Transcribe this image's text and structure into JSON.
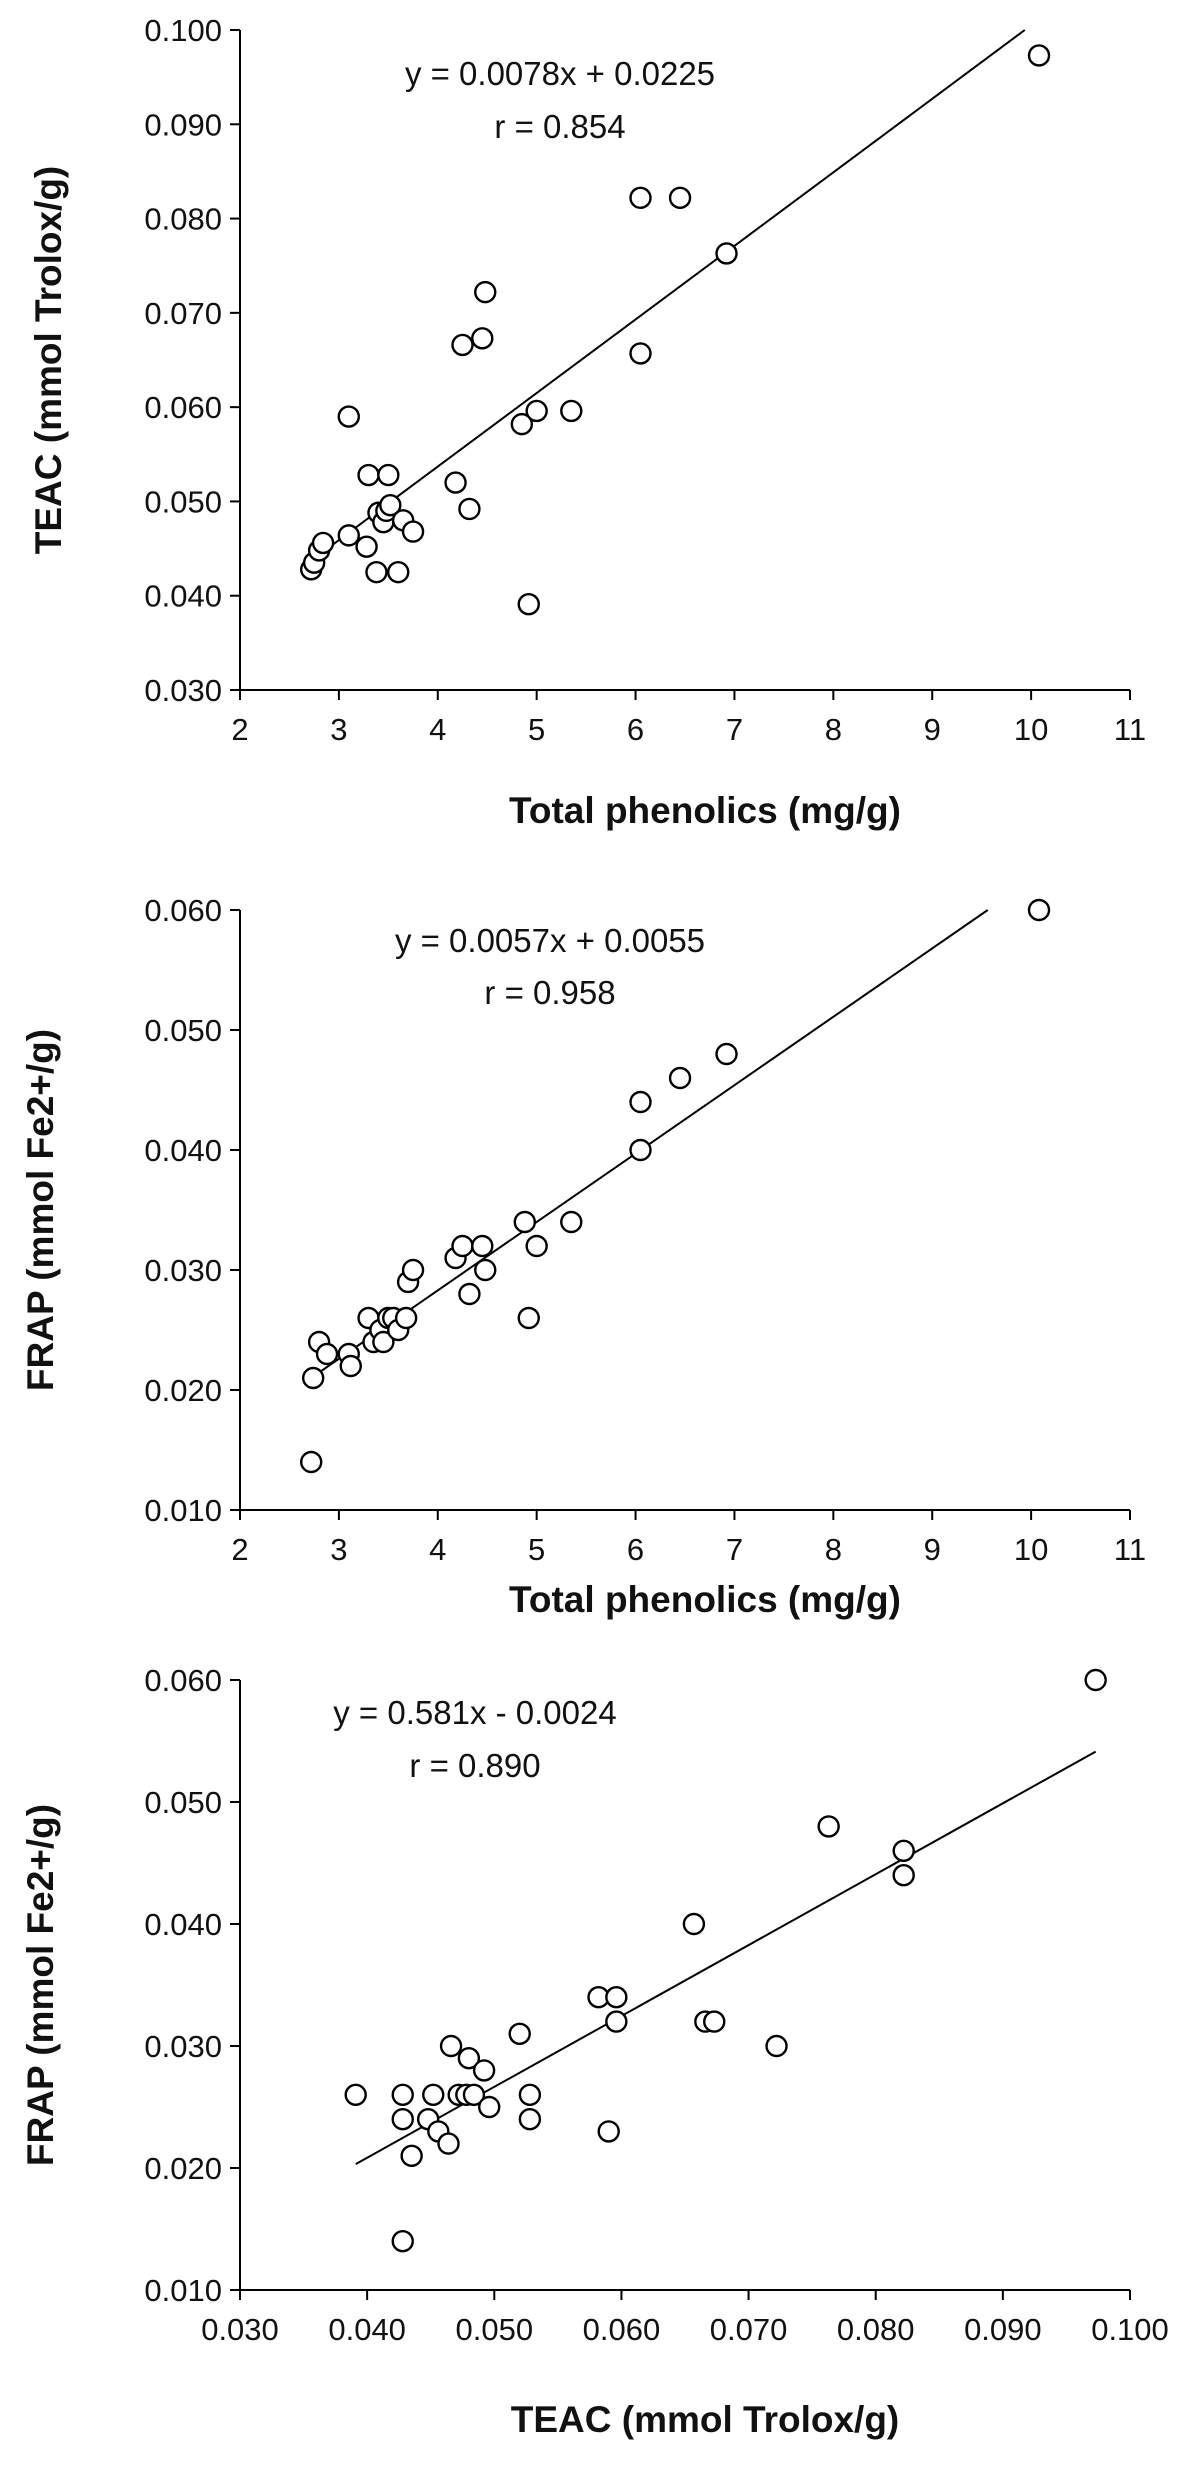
{
  "chart_data": [
    {
      "type": "scatter",
      "xlabel": "Total phenolics (mg/g)",
      "ylabel": "TEAC (mmol Trolox/g)",
      "xlim": [
        2,
        11
      ],
      "ylim": [
        0.03,
        0.1
      ],
      "x_ticks": [
        "2",
        "3",
        "4",
        "5",
        "6",
        "7",
        "8",
        "9",
        "10",
        "11"
      ],
      "y_ticks": [
        "0.030",
        "0.040",
        "0.050",
        "0.060",
        "0.070",
        "0.080",
        "0.090",
        "0.100"
      ],
      "equation": "y = 0.0078x + 0.0225",
      "r_label": "r = 0.854",
      "trendline": {
        "slope": 0.0078,
        "intercept": 0.0225
      },
      "grid": false,
      "points": [
        [
          2.72,
          0.0428
        ],
        [
          2.75,
          0.0435
        ],
        [
          2.8,
          0.0448
        ],
        [
          2.84,
          0.0456
        ],
        [
          3.1,
          0.0464
        ],
        [
          3.1,
          0.059
        ],
        [
          3.28,
          0.0452
        ],
        [
          3.3,
          0.0528
        ],
        [
          3.38,
          0.0425
        ],
        [
          3.4,
          0.0488
        ],
        [
          3.45,
          0.0478
        ],
        [
          3.48,
          0.049
        ],
        [
          3.5,
          0.0528
        ],
        [
          3.52,
          0.0496
        ],
        [
          3.6,
          0.0425
        ],
        [
          3.65,
          0.048
        ],
        [
          3.75,
          0.0468
        ],
        [
          4.18,
          0.052
        ],
        [
          4.25,
          0.0666
        ],
        [
          4.32,
          0.0492
        ],
        [
          4.45,
          0.0673
        ],
        [
          4.48,
          0.0722
        ],
        [
          4.85,
          0.0582
        ],
        [
          4.92,
          0.0391
        ],
        [
          5.0,
          0.0596
        ],
        [
          5.35,
          0.0596
        ],
        [
          6.05,
          0.0822
        ],
        [
          6.05,
          0.0657
        ],
        [
          6.45,
          0.0822
        ],
        [
          6.92,
          0.0763
        ],
        [
          10.08,
          0.0973
        ]
      ]
    },
    {
      "type": "scatter",
      "xlabel": "Total phenolics (mg/g)",
      "ylabel": "FRAP (mmol Fe2+/g)",
      "xlim": [
        2,
        11
      ],
      "ylim": [
        0.01,
        0.06
      ],
      "x_ticks": [
        "2",
        "3",
        "4",
        "5",
        "6",
        "7",
        "8",
        "9",
        "10",
        "11"
      ],
      "y_ticks": [
        "0.010",
        "0.020",
        "0.030",
        "0.040",
        "0.050",
        "0.060"
      ],
      "equation": "y = 0.0057x + 0.0055",
      "r_label": "r = 0.958",
      "trendline": {
        "slope": 0.0057,
        "intercept": 0.0055
      },
      "grid": false,
      "points": [
        [
          2.72,
          0.014
        ],
        [
          2.74,
          0.021
        ],
        [
          2.8,
          0.024
        ],
        [
          2.88,
          0.023
        ],
        [
          3.1,
          0.023
        ],
        [
          3.12,
          0.022
        ],
        [
          3.3,
          0.026
        ],
        [
          3.35,
          0.024
        ],
        [
          3.42,
          0.025
        ],
        [
          3.45,
          0.024
        ],
        [
          3.5,
          0.026
        ],
        [
          3.55,
          0.026
        ],
        [
          3.6,
          0.025
        ],
        [
          3.68,
          0.026
        ],
        [
          3.7,
          0.029
        ],
        [
          3.75,
          0.03
        ],
        [
          4.18,
          0.031
        ],
        [
          4.25,
          0.032
        ],
        [
          4.32,
          0.028
        ],
        [
          4.45,
          0.032
        ],
        [
          4.48,
          0.03
        ],
        [
          4.88,
          0.034
        ],
        [
          4.92,
          0.026
        ],
        [
          5.0,
          0.032
        ],
        [
          5.35,
          0.034
        ],
        [
          6.05,
          0.044
        ],
        [
          6.05,
          0.04
        ],
        [
          6.45,
          0.046
        ],
        [
          6.92,
          0.048
        ],
        [
          10.08,
          0.06
        ]
      ]
    },
    {
      "type": "scatter",
      "xlabel": "TEAC (mmol Trolox/g)",
      "ylabel": "FRAP (mmol Fe2+/g)",
      "xlim": [
        0.03,
        0.1
      ],
      "ylim": [
        0.01,
        0.06
      ],
      "x_ticks": [
        "0.030",
        "0.040",
        "0.050",
        "0.060",
        "0.070",
        "0.080",
        "0.090",
        "0.100"
      ],
      "y_ticks": [
        "0.010",
        "0.020",
        "0.030",
        "0.040",
        "0.050",
        "0.060"
      ],
      "equation": "y = 0.581x - 0.0024",
      "r_label": "r = 0.890",
      "trendline": {
        "slope": 0.581,
        "intercept": -0.0024
      },
      "grid": false,
      "points": [
        [
          0.0391,
          0.026
        ],
        [
          0.0428,
          0.014
        ],
        [
          0.0428,
          0.024
        ],
        [
          0.0428,
          0.026
        ],
        [
          0.0435,
          0.021
        ],
        [
          0.0448,
          0.024
        ],
        [
          0.0452,
          0.026
        ],
        [
          0.0456,
          0.023
        ],
        [
          0.0464,
          0.022
        ],
        [
          0.0466,
          0.03
        ],
        [
          0.0472,
          0.026
        ],
        [
          0.0478,
          0.026
        ],
        [
          0.048,
          0.029
        ],
        [
          0.0484,
          0.026
        ],
        [
          0.0492,
          0.028
        ],
        [
          0.0496,
          0.025
        ],
        [
          0.052,
          0.031
        ],
        [
          0.0528,
          0.026
        ],
        [
          0.0528,
          0.024
        ],
        [
          0.0582,
          0.034
        ],
        [
          0.059,
          0.023
        ],
        [
          0.0596,
          0.034
        ],
        [
          0.0596,
          0.032
        ],
        [
          0.0657,
          0.04
        ],
        [
          0.0666,
          0.032
        ],
        [
          0.0673,
          0.032
        ],
        [
          0.0722,
          0.03
        ],
        [
          0.0763,
          0.048
        ],
        [
          0.0822,
          0.046
        ],
        [
          0.0822,
          0.044
        ],
        [
          0.0973,
          0.06
        ]
      ]
    }
  ]
}
